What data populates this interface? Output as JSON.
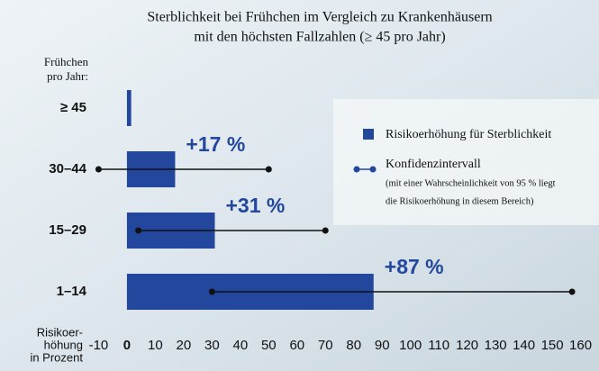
{
  "chart_data": {
    "type": "bar",
    "orientation": "horizontal",
    "title": [
      "Sterblichkeit bei Frühchen im Vergleich zu Krankenhäusern",
      "mit den höchsten Fallzahlen (≥ 45 pro Jahr)"
    ],
    "ylabel": [
      "Frühchen",
      "pro Jahr:"
    ],
    "xlabel": [
      "Risikoer-",
      "höhung",
      "in Prozent"
    ],
    "categories": [
      "≥ 45",
      "30–44",
      "15–29",
      "1–14"
    ],
    "series": [
      {
        "name": "Risikoerhöhung für Sterblichkeit",
        "color": "#24479e",
        "values": [
          1.5,
          17,
          31,
          87
        ],
        "value_labels": [
          null,
          "+17 %",
          "+31 %",
          "+87 %"
        ]
      }
    ],
    "ci": {
      "name": "Konfidenzintervall",
      "note": [
        "(mit einer Wahrscheinlichkeit von 95 % liegt",
        "die Risikoerhöhung in diesem Bereich)"
      ],
      "color": "#111111",
      "low": [
        null,
        -10,
        4,
        30
      ],
      "high": [
        null,
        50,
        70,
        157
      ]
    },
    "xlim": [
      -13,
      163
    ],
    "xticks": [
      -10,
      0,
      10,
      20,
      30,
      40,
      50,
      60,
      70,
      80,
      90,
      100,
      110,
      120,
      130,
      140,
      150,
      160
    ]
  }
}
